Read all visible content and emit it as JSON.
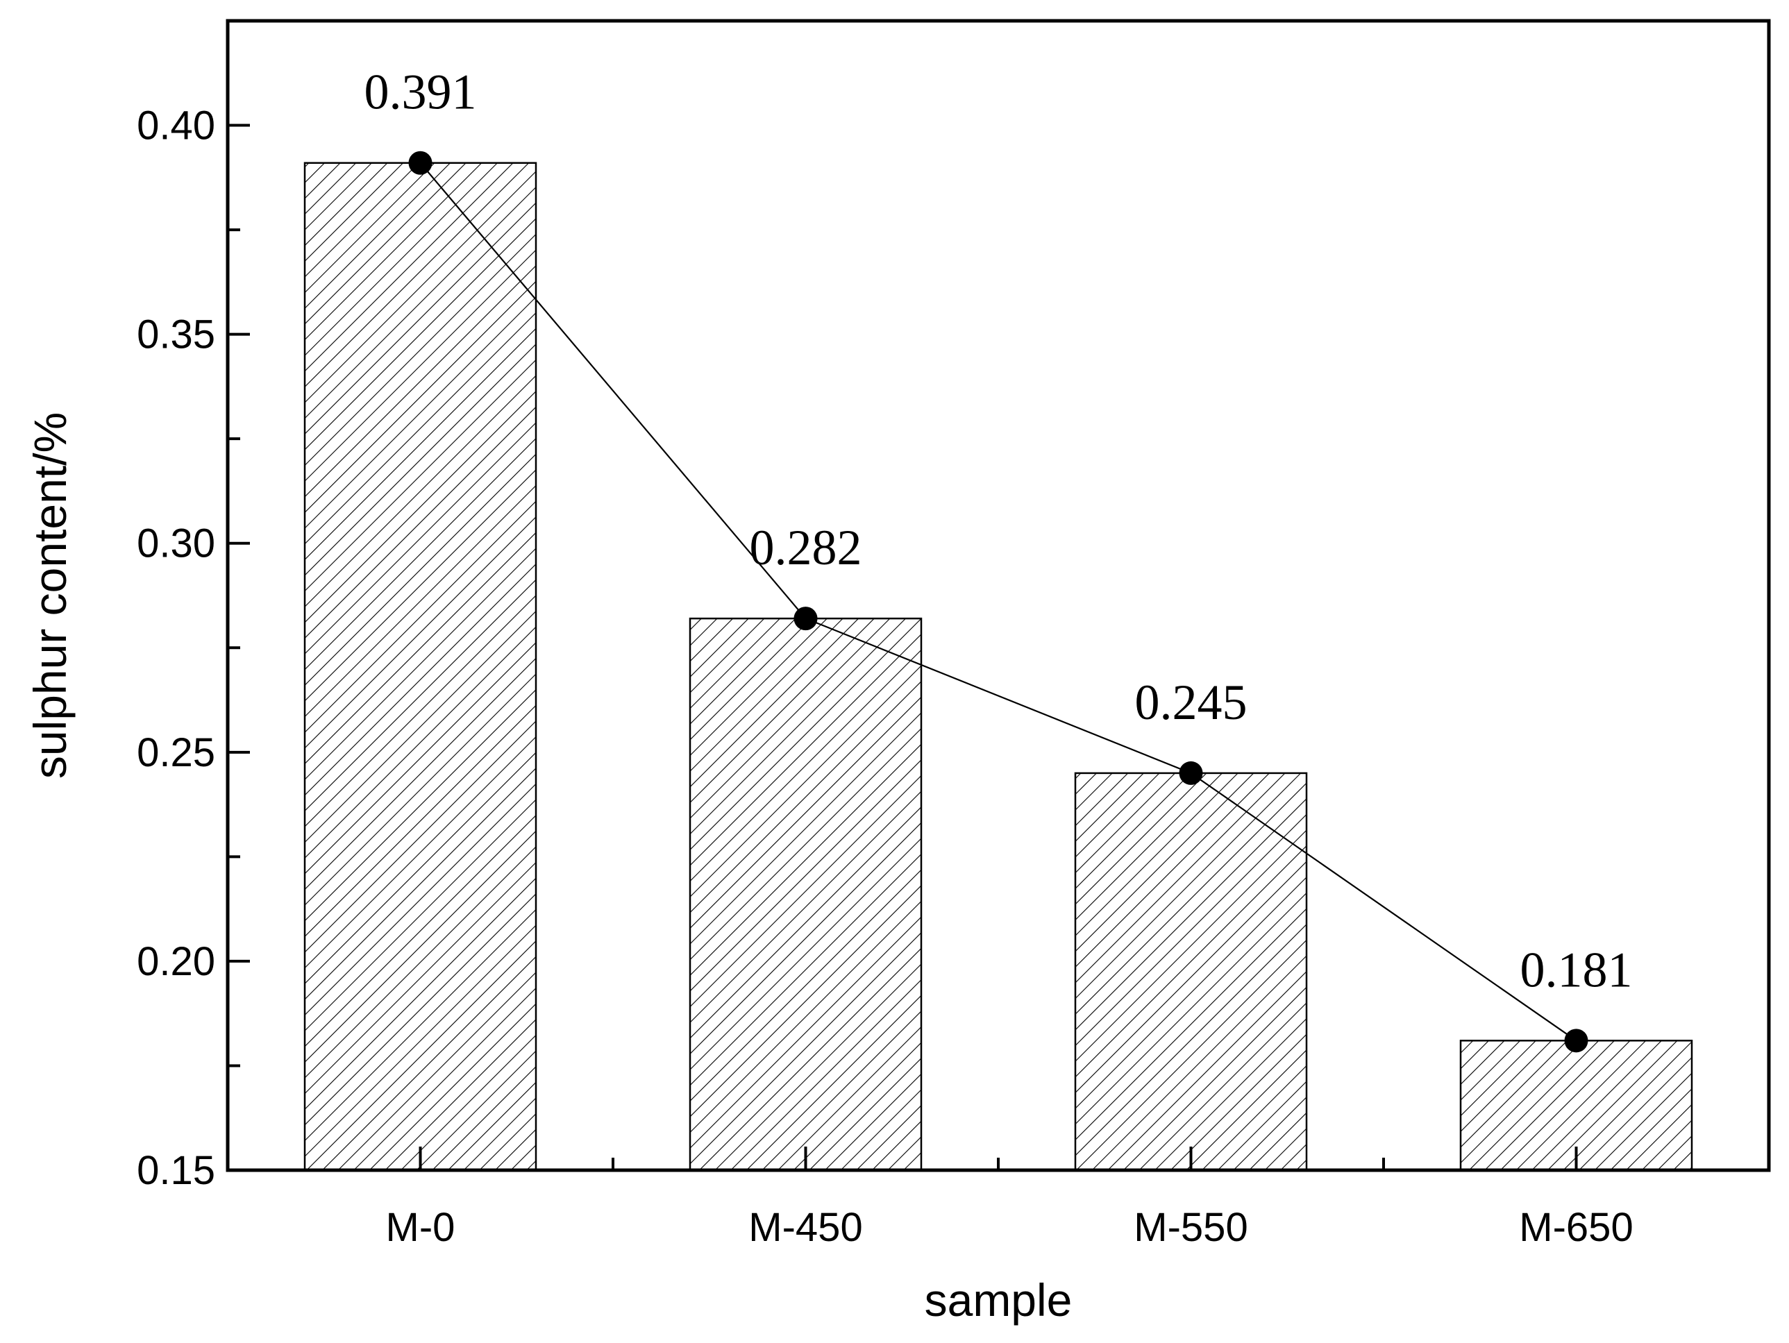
{
  "chart_data": {
    "type": "bar",
    "title": "",
    "xlabel": "sample",
    "ylabel": "sulphur content/%",
    "categories": [
      "M-0",
      "M-450",
      "M-550",
      "M-650"
    ],
    "values": [
      0.391,
      0.282,
      0.245,
      0.181
    ],
    "data_labels": [
      "0.391",
      "0.282",
      "0.245",
      "0.181"
    ],
    "ylim": [
      0.15,
      0.425
    ],
    "yticks": [
      0.15,
      0.2,
      0.25,
      0.3,
      0.35,
      0.4
    ],
    "ytick_labels": [
      "0.15",
      "0.20",
      "0.25",
      "0.30",
      "0.35",
      "0.40"
    ],
    "overlay_line": true,
    "bar_fill": "hatched",
    "grid": false,
    "colors": {
      "line": "#000000",
      "marker": "#000000",
      "bar_edge": "#000000",
      "hatch": "#000000",
      "background": "#ffffff"
    }
  }
}
